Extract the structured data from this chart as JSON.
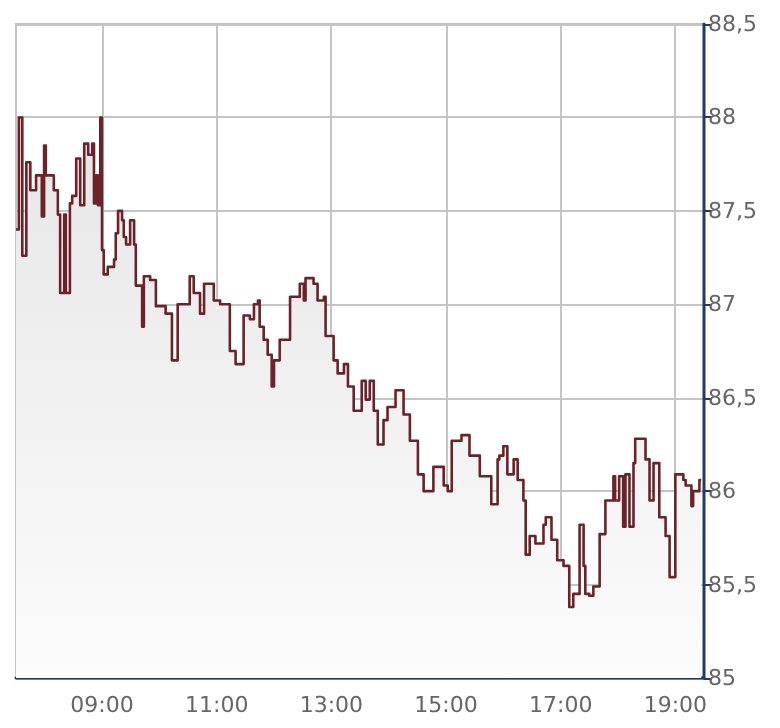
{
  "chart_data": {
    "type": "area",
    "color": "#6b2228",
    "grid": true,
    "x": [
      7.5,
      7.55,
      7.55,
      7.61,
      7.61,
      7.68,
      7.68,
      7.75,
      7.75,
      7.85,
      7.85,
      7.95,
      7.95,
      7.99,
      7.99,
      8.02,
      8.02,
      8.16,
      8.16,
      8.23,
      8.23,
      8.27,
      8.27,
      8.34,
      8.34,
      8.37,
      8.37,
      8.44,
      8.44,
      8.48,
      8.48,
      8.55,
      8.55,
      8.62,
      8.62,
      8.69,
      8.69,
      8.76,
      8.76,
      8.83,
      8.83,
      8.86,
      8.86,
      8.9,
      8.9,
      8.93,
      8.93,
      8.97,
      8.97,
      9.0,
      9.0,
      9.03,
      9.03,
      9.1,
      9.1,
      9.21,
      9.21,
      9.24,
      9.24,
      9.28,
      9.28,
      9.35,
      9.35,
      9.38,
      9.38,
      9.42,
      9.42,
      9.49,
      9.49,
      9.56,
      9.56,
      9.59,
      9.59,
      9.7,
      9.7,
      9.73,
      9.73,
      9.84,
      9.84,
      9.94,
      9.94,
      10.11,
      10.11,
      10.22,
      10.22,
      10.32,
      10.32,
      10.53,
      10.53,
      10.6,
      10.6,
      10.71,
      10.71,
      10.78,
      10.78,
      10.95,
      10.95,
      11.06,
      11.06,
      11.23,
      11.23,
      11.33,
      11.33,
      11.47,
      11.47,
      11.58,
      11.58,
      11.65,
      11.65,
      11.72,
      11.72,
      11.75,
      11.75,
      11.82,
      11.82,
      11.89,
      11.89,
      11.96,
      11.96,
      12.0,
      12.0,
      12.1,
      12.1,
      12.28,
      12.28,
      12.45,
      12.45,
      12.52,
      12.52,
      12.55,
      12.55,
      12.69,
      12.69,
      12.76,
      12.76,
      12.87,
      12.87,
      12.9,
      12.9,
      13.04,
      13.04,
      13.11,
      13.11,
      13.22,
      13.22,
      13.29,
      13.29,
      13.39,
      13.39,
      13.53,
      13.53,
      13.6,
      13.6,
      13.67,
      13.67,
      13.74,
      13.74,
      13.81,
      13.81,
      13.91,
      13.91,
      13.98,
      13.98,
      14.12,
      14.12,
      14.26,
      14.26,
      14.37,
      14.37,
      14.51,
      14.51,
      14.61,
      14.61,
      14.78,
      14.78,
      14.96,
      14.96,
      15.03,
      15.03,
      15.1,
      15.1,
      15.27,
      15.27,
      15.41,
      15.41,
      15.59,
      15.59,
      15.79,
      15.79,
      15.9,
      15.9,
      15.93,
      15.93,
      16.0,
      16.0,
      16.07,
      16.07,
      16.18,
      16.18,
      16.25,
      16.25,
      16.35,
      16.35,
      16.39,
      16.39,
      16.46,
      16.46,
      16.56,
      16.56,
      16.7,
      16.7,
      16.74,
      16.74,
      16.84,
      16.84,
      16.94,
      16.94,
      17.05,
      17.05,
      17.15,
      17.15,
      17.22,
      17.22,
      17.33,
      17.33,
      17.4,
      17.4,
      17.43,
      17.43,
      17.5,
      17.5,
      17.57,
      17.57,
      17.68,
      17.68,
      17.78,
      17.78,
      17.92,
      17.92,
      17.95,
      17.95,
      18.02,
      18.02,
      18.09,
      18.09,
      18.13,
      18.13,
      18.2,
      18.2,
      18.27,
      18.27,
      18.3,
      18.3,
      18.48,
      18.48,
      18.55,
      18.55,
      18.62,
      18.62,
      18.72,
      18.72,
      18.83,
      18.83,
      18.9,
      18.9,
      19.0,
      19.0,
      19.14,
      19.14,
      19.18,
      19.18,
      19.28,
      19.28,
      19.31,
      19.31,
      19.42,
      19.42,
      19.45
    ],
    "values": [
      87.4,
      87.4,
      88.0,
      88.0,
      87.26,
      87.26,
      87.76,
      87.76,
      87.61,
      87.61,
      87.69,
      87.69,
      87.47,
      87.47,
      87.85,
      87.85,
      87.69,
      87.69,
      87.61,
      87.61,
      87.48,
      87.48,
      87.06,
      87.06,
      87.48,
      87.48,
      87.06,
      87.06,
      87.54,
      87.54,
      87.58,
      87.58,
      87.78,
      87.78,
      87.53,
      87.53,
      87.86,
      87.86,
      87.8,
      87.8,
      87.86,
      87.86,
      87.54,
      87.54,
      87.69,
      87.69,
      87.53,
      87.53,
      88.0,
      88.0,
      87.29,
      87.29,
      87.16,
      87.16,
      87.2,
      87.2,
      87.24,
      87.24,
      87.38,
      87.38,
      87.5,
      87.5,
      87.45,
      87.45,
      87.36,
      87.36,
      87.32,
      87.32,
      87.45,
      87.45,
      87.32,
      87.32,
      87.1,
      87.1,
      86.88,
      86.88,
      87.15,
      87.15,
      87.13,
      87.13,
      86.99,
      86.99,
      86.95,
      86.95,
      86.7,
      86.7,
      87.0,
      87.0,
      87.15,
      87.15,
      87.06,
      87.06,
      86.95,
      86.95,
      87.11,
      87.11,
      87.02,
      87.02,
      87.0,
      87.0,
      86.75,
      86.75,
      86.68,
      86.68,
      86.94,
      86.94,
      86.92,
      86.92,
      87.0,
      87.0,
      87.02,
      87.02,
      86.88,
      86.88,
      86.81,
      86.81,
      86.73,
      86.73,
      86.56,
      86.56,
      86.7,
      86.7,
      86.81,
      86.81,
      87.04,
      87.04,
      87.11,
      87.11,
      87.02,
      87.02,
      87.14,
      87.14,
      87.11,
      87.11,
      87.02,
      87.02,
      87.04,
      87.04,
      86.83,
      86.83,
      86.7,
      86.7,
      86.63,
      86.63,
      86.68,
      86.68,
      86.56,
      86.56,
      86.43,
      86.43,
      86.59,
      86.59,
      86.49,
      86.49,
      86.59,
      86.59,
      86.43,
      86.43,
      86.25,
      86.25,
      86.38,
      86.38,
      86.45,
      86.45,
      86.54,
      86.54,
      86.41,
      86.41,
      86.27,
      86.27,
      86.09,
      86.09,
      86.0,
      86.0,
      86.13,
      86.13,
      86.03,
      86.03,
      86.0,
      86.0,
      86.27,
      86.27,
      86.3,
      86.3,
      86.19,
      86.19,
      86.08,
      86.08,
      85.93,
      85.93,
      86.17,
      86.17,
      86.19,
      86.19,
      86.24,
      86.24,
      86.09,
      86.09,
      86.17,
      86.17,
      86.06,
      86.06,
      85.95,
      85.95,
      85.66,
      85.66,
      85.76,
      85.76,
      85.72,
      85.72,
      85.82,
      85.82,
      85.86,
      85.86,
      85.74,
      85.74,
      85.63,
      85.63,
      85.6,
      85.6,
      85.38,
      85.38,
      85.45,
      85.45,
      85.82,
      85.82,
      85.6,
      85.6,
      85.45,
      85.45,
      85.44,
      85.44,
      85.49,
      85.49,
      85.77,
      85.77,
      85.95,
      85.95,
      86.08,
      86.08,
      85.95,
      85.95,
      86.08,
      86.08,
      85.81,
      85.81,
      86.09,
      86.09,
      85.81,
      85.81,
      86.15,
      86.15,
      86.28,
      86.28,
      86.17,
      86.17,
      85.95,
      85.95,
      86.15,
      86.15,
      85.86,
      85.86,
      85.76,
      85.76,
      85.54,
      85.54,
      86.09,
      86.09,
      86.06,
      86.06,
      86.03,
      86.03,
      85.92,
      85.92,
      86.0,
      86.0,
      86.06,
      86.06
    ],
    "xlim": [
      7.5,
      19.5
    ],
    "xticks": [
      {
        "value": 9,
        "label": "09:00"
      },
      {
        "value": 11,
        "label": "11:00"
      },
      {
        "value": 13,
        "label": "13:00"
      },
      {
        "value": 15,
        "label": "15:00"
      },
      {
        "value": 17,
        "label": "17:00"
      },
      {
        "value": 19,
        "label": "19:00"
      }
    ],
    "ylim": [
      85,
      88.5
    ],
    "yticks": [
      85,
      {
        "value": 85.5,
        "label": "85,5"
      },
      86,
      {
        "value": 86.5,
        "label": "86,5"
      },
      87,
      {
        "value": 87.5,
        "label": "87,5"
      },
      88,
      {
        "value": 88.5,
        "label": "88,5"
      }
    ]
  }
}
